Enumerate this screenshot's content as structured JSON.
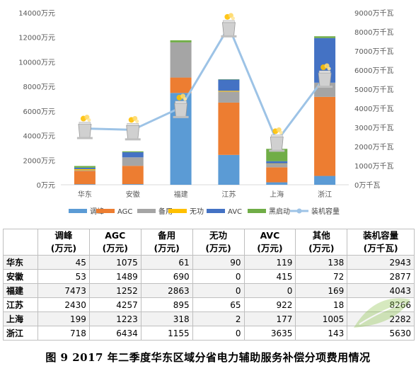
{
  "chart_data": {
    "type": "bar",
    "stacked": true,
    "categories": [
      "华东",
      "安徽",
      "福建",
      "江苏",
      "上海",
      "浙江"
    ],
    "series": [
      {
        "name": "调峰",
        "color": "#5b9bd5",
        "values": [
          45,
          53,
          7473,
          2430,
          199,
          718
        ]
      },
      {
        "name": "AGC",
        "color": "#ed7d31",
        "values": [
          1075,
          1489,
          1252,
          4257,
          1223,
          6434
        ]
      },
      {
        "name": "备用",
        "color": "#a5a5a5",
        "values": [
          61,
          690,
          2863,
          895,
          318,
          1155
        ]
      },
      {
        "name": "无功",
        "color": "#ffc000",
        "values": [
          90,
          0,
          0,
          65,
          2,
          0
        ]
      },
      {
        "name": "AVC",
        "color": "#4472c4",
        "values": [
          119,
          415,
          0,
          922,
          177,
          3635
        ]
      },
      {
        "name": "黑启动",
        "color": "#70ad47",
        "values": [
          138,
          72,
          169,
          18,
          1005,
          143
        ]
      }
    ],
    "line_series": {
      "name": "装机容量",
      "color": "#9dc3e6",
      "axis": "right",
      "values": [
        2943,
        2877,
        4043,
        8266,
        2282,
        5630
      ]
    },
    "ylim": [
      0,
      14000
    ],
    "yticks": [
      "0万元",
      "2000万元",
      "4000万元",
      "6000万元",
      "8000万元",
      "10000万元",
      "12000万元",
      "14000万元"
    ],
    "y2lim": [
      0,
      9000
    ],
    "y2ticks": [
      "0万千瓦",
      "1000万千瓦",
      "2000万千瓦",
      "3000万千瓦",
      "4000万千瓦",
      "5000万千瓦",
      "6000万千瓦",
      "7000万千瓦",
      "8000万千瓦",
      "9000万千瓦"
    ],
    "legend_position": "bottom",
    "grid": false
  },
  "table": {
    "headers": [
      {
        "l1": "调峰",
        "l2": "(万元)"
      },
      {
        "l1": "AGC",
        "l2": "(万元)"
      },
      {
        "l1": "备用",
        "l2": "(万元)"
      },
      {
        "l1": "无功",
        "l2": "(万元)"
      },
      {
        "l1": "AVC",
        "l2": "(万元)"
      },
      {
        "l1": "其他",
        "l2": "(万元)"
      },
      {
        "l1": "装机容量",
        "l2": "(万千瓦)"
      }
    ],
    "rows": [
      {
        "name": "华东",
        "cells": [
          "45",
          "1075",
          "61",
          "90",
          "119",
          "138",
          "2943"
        ]
      },
      {
        "name": "安徽",
        "cells": [
          "53",
          "1489",
          "690",
          "0",
          "415",
          "72",
          "2877"
        ]
      },
      {
        "name": "福建",
        "cells": [
          "7473",
          "1252",
          "2863",
          "0",
          "0",
          "169",
          "4043"
        ]
      },
      {
        "name": "江苏",
        "cells": [
          "2430",
          "4257",
          "895",
          "65",
          "922",
          "18",
          "8266"
        ]
      },
      {
        "name": "上海",
        "cells": [
          "199",
          "1223",
          "318",
          "2",
          "177",
          "1005",
          "2282"
        ]
      },
      {
        "name": "浙江",
        "cells": [
          "718",
          "6434",
          "1155",
          "0",
          "3635",
          "143",
          "5630"
        ]
      }
    ]
  },
  "caption": "图 9  2017 年二季度华东区域分省电力辅助服务补偿分项费用情况",
  "icons": {
    "point_marker": "power-plant-icon",
    "watermark": "leaf-logo-icon"
  }
}
